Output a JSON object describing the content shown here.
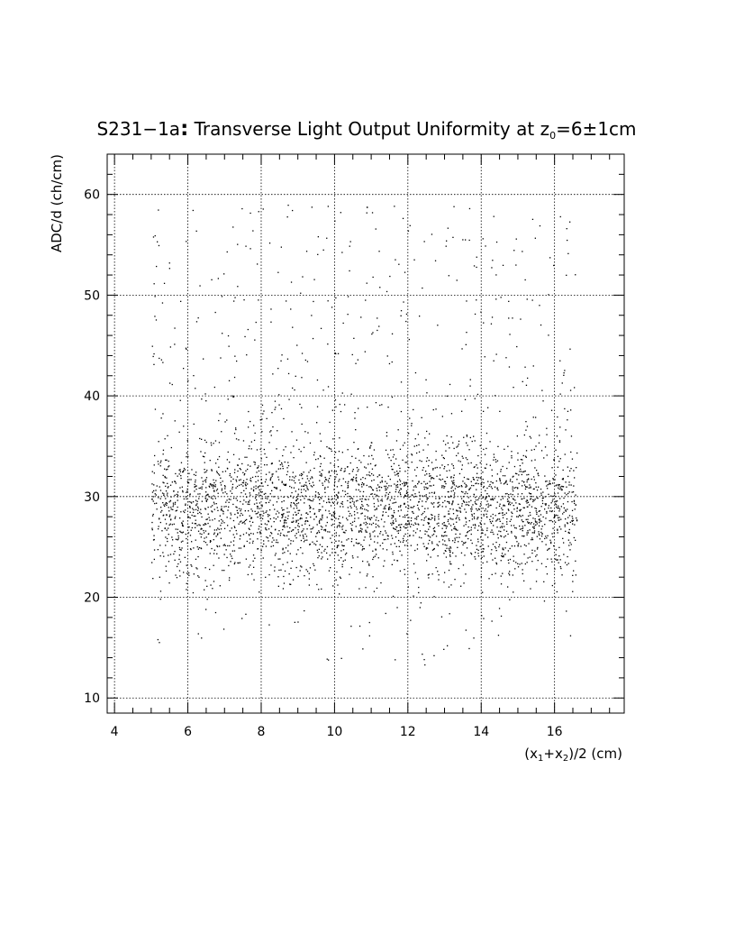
{
  "chart_data": {
    "type": "scatter",
    "title": {
      "prefix": "S231−1a",
      "colon": ":",
      "main": " Transverse Light Output Uniformity at z",
      "main_sub": "0",
      "tail": "=6±1cm"
    },
    "xlabel": {
      "p1": "(x",
      "s1": "1",
      "p2": "+x",
      "s2": "2",
      "p3": ")/2 (cm)"
    },
    "ylabel": "ADC/d (ch/cm)",
    "xlim": [
      3.8,
      17.9
    ],
    "ylim": [
      8.5,
      64
    ],
    "xticks": [
      4,
      6,
      8,
      10,
      12,
      14,
      16
    ],
    "xtick_labels": [
      "4",
      "6",
      "8",
      "10",
      "12",
      "14",
      "16"
    ],
    "yticks": [
      10,
      20,
      30,
      40,
      50,
      60
    ],
    "ytick_labels": [
      "10",
      "20",
      "30",
      "40",
      "50",
      "60"
    ],
    "grid": true,
    "marker_color": "#000000",
    "point_distribution": {
      "count": 3600,
      "x_range": [
        5.0,
        16.6
      ],
      "y_core_mean": 28.5,
      "y_core_sd": 3.3,
      "y_tail_range": [
        31,
        59
      ],
      "tail_fraction": 0.17,
      "low_fraction": 0.012,
      "low_range": [
        13,
        21
      ]
    }
  }
}
